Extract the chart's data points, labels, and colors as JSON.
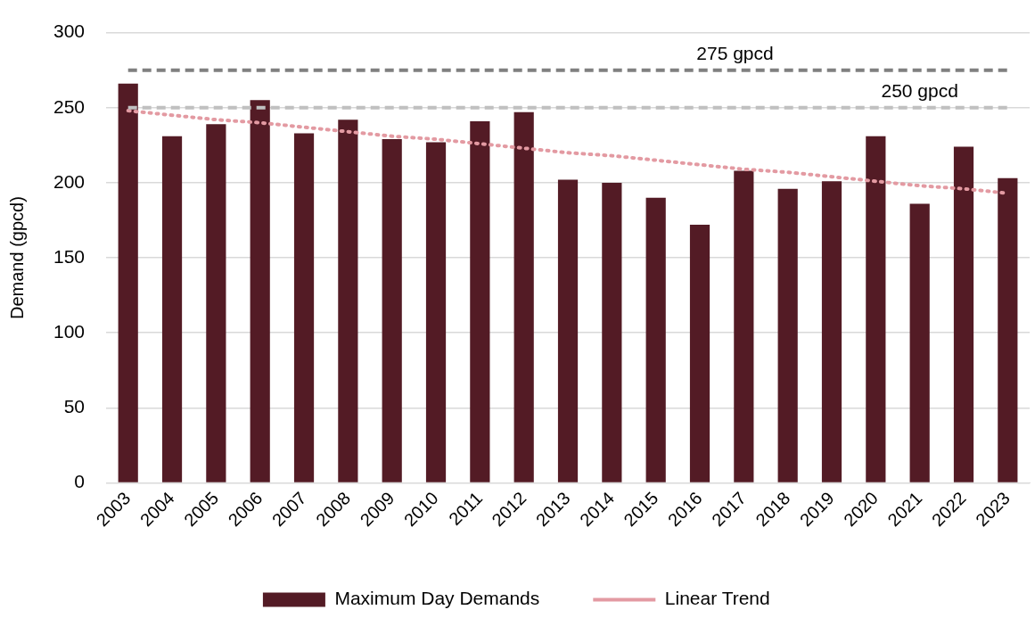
{
  "chart_data": {
    "type": "bar",
    "ylabel": "Demand (gpcd)",
    "categories": [
      "2003",
      "2004",
      "2005",
      "2006",
      "2007",
      "2008",
      "2009",
      "2010",
      "2011",
      "2012",
      "2013",
      "2014",
      "2015",
      "2016",
      "2017",
      "2018",
      "2019",
      "2020",
      "2021",
      "2022",
      "2023"
    ],
    "series": [
      {
        "name": "Maximum Day Demands",
        "color": "#531b25",
        "values": [
          266,
          231,
          239,
          255,
          233,
          242,
          229,
          227,
          241,
          247,
          202,
          200,
          190,
          172,
          208,
          196,
          201,
          231,
          186,
          224,
          203
        ]
      },
      {
        "name": "Linear Trend",
        "type": "line",
        "color": "#e39aa2",
        "line_style": "dotted",
        "values": [
          248,
          245,
          242,
          240,
          237,
          234,
          231,
          229,
          226,
          223,
          220,
          218,
          215,
          212,
          209,
          207,
          204,
          201,
          198,
          196,
          193
        ]
      }
    ],
    "ylim": [
      0,
      300
    ],
    "yticks": [
      0,
      50,
      100,
      150,
      200,
      250,
      300
    ],
    "grid": "y",
    "legend": "bottom",
    "ref_lines": [
      {
        "axis": "y",
        "value": 275,
        "label": "275 gpcd",
        "color": "#808080",
        "line_style": "dashed"
      },
      {
        "axis": "y",
        "value": 250,
        "label": "250 gpcd",
        "color": "#c0c0c0",
        "line_style": "dashed"
      }
    ]
  }
}
